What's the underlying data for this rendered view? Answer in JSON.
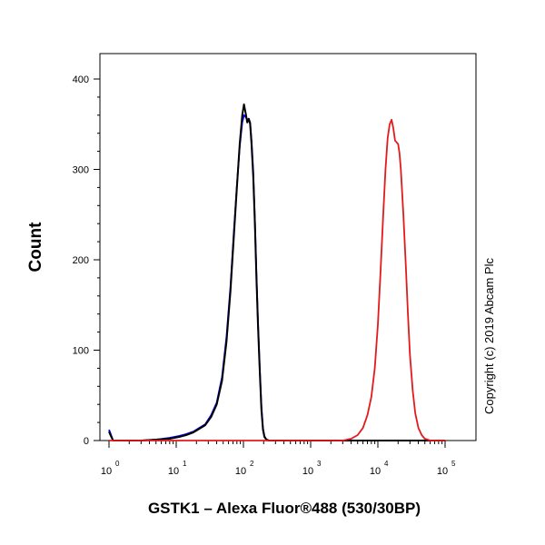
{
  "chart_data": {
    "type": "line",
    "xlabel": "GSTK1 – Alexa Fluor®488 (530/30BP)",
    "ylabel": "Count",
    "xscale": "log",
    "xlim": [
      1,
      100000
    ],
    "ylim": [
      0,
      420
    ],
    "x_ticks": [
      {
        "base": "10",
        "exp": "0",
        "value": 1
      },
      {
        "base": "10",
        "exp": "1",
        "value": 10
      },
      {
        "base": "10",
        "exp": "2",
        "value": 100
      },
      {
        "base": "10",
        "exp": "3",
        "value": 1000
      },
      {
        "base": "10",
        "exp": "4",
        "value": 10000
      },
      {
        "base": "10",
        "exp": "5",
        "value": 100000
      }
    ],
    "y_ticks": [
      {
        "label": "0",
        "value": 0
      },
      {
        "label": "100",
        "value": 100
      },
      {
        "label": "200",
        "value": 200
      },
      {
        "label": "300",
        "value": 300
      },
      {
        "label": "400",
        "value": 400
      }
    ],
    "series": [
      {
        "color": "#0000ff",
        "x": [
          1,
          1.05,
          1.15,
          3,
          5,
          8,
          11,
          14,
          18,
          22,
          27,
          33,
          40,
          48,
          56,
          64,
          72,
          80,
          88,
          96,
          102,
          108,
          114,
          120,
          126,
          132,
          140,
          148,
          156,
          165,
          175,
          185,
          195,
          205,
          220,
          240,
          300,
          1000,
          10000,
          100000
        ],
        "y": [
          12,
          8,
          0,
          0,
          1,
          3,
          5,
          7,
          10,
          14,
          18,
          28,
          42,
          70,
          115,
          170,
          230,
          282,
          325,
          352,
          360,
          358,
          355,
          356,
          352,
          332,
          298,
          245,
          185,
          130,
          80,
          38,
          14,
          5,
          1,
          0,
          0,
          0,
          0,
          0
        ]
      },
      {
        "color": "#000000",
        "x": [
          1,
          1.05,
          1.15,
          3,
          5,
          8,
          11,
          14,
          18,
          22,
          27,
          33,
          40,
          48,
          56,
          64,
          72,
          80,
          88,
          96,
          102,
          108,
          114,
          120,
          126,
          132,
          140,
          148,
          156,
          165,
          175,
          185,
          195,
          205,
          220,
          240,
          300,
          1000,
          10000,
          100000
        ],
        "y": [
          10,
          6,
          0,
          0,
          1,
          2,
          4,
          6,
          9,
          13,
          17,
          26,
          40,
          66,
          110,
          165,
          225,
          280,
          328,
          360,
          372,
          362,
          352,
          356,
          350,
          328,
          292,
          240,
          180,
          125,
          76,
          34,
          12,
          4,
          1,
          0,
          0,
          0,
          0,
          0
        ]
      },
      {
        "color": "#e31a1c",
        "x": [
          1,
          1000,
          3000,
          4000,
          5000,
          6000,
          7000,
          8000,
          9000,
          10000,
          11000,
          12000,
          13000,
          14000,
          15000,
          16000,
          17000,
          18000,
          19000,
          20000,
          21000,
          22000,
          24000,
          26000,
          28000,
          30000,
          33000,
          36000,
          40000,
          45000,
          50000,
          55000,
          60000,
          70000,
          100000
        ],
        "y": [
          0,
          0,
          0,
          2,
          6,
          14,
          28,
          48,
          80,
          128,
          190,
          250,
          300,
          335,
          350,
          355,
          345,
          332,
          330,
          328,
          318,
          300,
          250,
          195,
          140,
          95,
          55,
          30,
          14,
          6,
          2,
          1,
          0,
          0,
          0
        ]
      }
    ],
    "grid": false
  },
  "copyright": "Copyright (c) 2019 Abcam Plc"
}
